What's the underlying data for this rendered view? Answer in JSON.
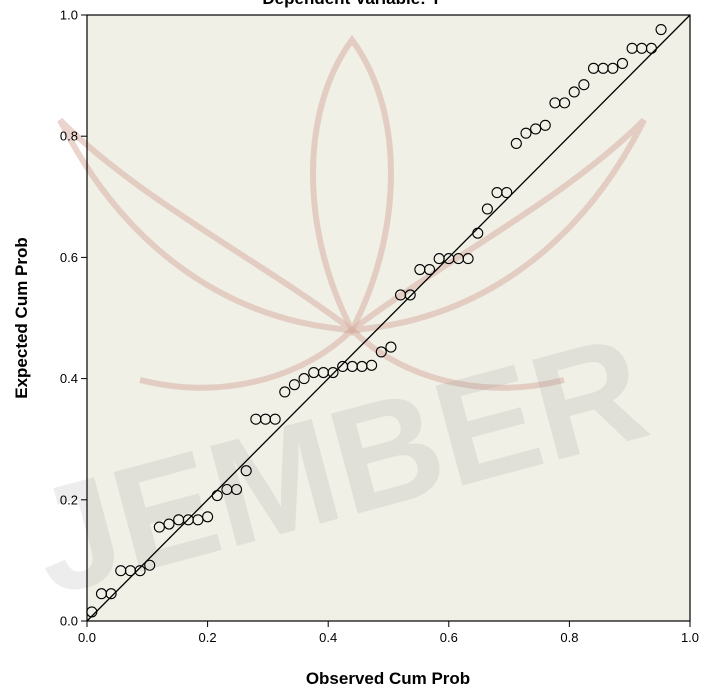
{
  "chart_data": {
    "type": "scatter",
    "title": "Dependent Variable: Y",
    "xlabel": "Observed Cum Prob",
    "ylabel": "Expected Cum Prob",
    "xlim": [
      0,
      1
    ],
    "ylim": [
      0,
      1
    ],
    "x_ticks": [
      "0.0",
      "0.2",
      "0.4",
      "0.6",
      "0.8",
      "1.0"
    ],
    "y_ticks": [
      "0.0",
      "0.2",
      "0.4",
      "0.6",
      "0.8",
      "1.0"
    ],
    "grid": false,
    "reference_line": {
      "from": [
        0,
        0
      ],
      "to": [
        1,
        1
      ]
    },
    "series": [
      {
        "points": [
          [
            0.008,
            0.015
          ],
          [
            0.024,
            0.045
          ],
          [
            0.04,
            0.045
          ],
          [
            0.056,
            0.083
          ],
          [
            0.072,
            0.083
          ],
          [
            0.088,
            0.083
          ],
          [
            0.104,
            0.092
          ],
          [
            0.12,
            0.155
          ],
          [
            0.136,
            0.16
          ],
          [
            0.152,
            0.167
          ],
          [
            0.168,
            0.167
          ],
          [
            0.184,
            0.167
          ],
          [
            0.2,
            0.172
          ],
          [
            0.216,
            0.207
          ],
          [
            0.232,
            0.217
          ],
          [
            0.248,
            0.217
          ],
          [
            0.264,
            0.248
          ],
          [
            0.28,
            0.333
          ],
          [
            0.296,
            0.333
          ],
          [
            0.312,
            0.333
          ],
          [
            0.328,
            0.378
          ],
          [
            0.344,
            0.39
          ],
          [
            0.36,
            0.4
          ],
          [
            0.376,
            0.41
          ],
          [
            0.392,
            0.41
          ],
          [
            0.408,
            0.41
          ],
          [
            0.424,
            0.42
          ],
          [
            0.44,
            0.42
          ],
          [
            0.456,
            0.42
          ],
          [
            0.472,
            0.422
          ],
          [
            0.488,
            0.444
          ],
          [
            0.504,
            0.452
          ],
          [
            0.52,
            0.538
          ],
          [
            0.536,
            0.538
          ],
          [
            0.552,
            0.58
          ],
          [
            0.568,
            0.58
          ],
          [
            0.584,
            0.598
          ],
          [
            0.6,
            0.598
          ],
          [
            0.616,
            0.598
          ],
          [
            0.632,
            0.598
          ],
          [
            0.648,
            0.64
          ],
          [
            0.664,
            0.68
          ],
          [
            0.68,
            0.707
          ],
          [
            0.696,
            0.707
          ],
          [
            0.712,
            0.788
          ],
          [
            0.728,
            0.805
          ],
          [
            0.744,
            0.812
          ],
          [
            0.76,
            0.818
          ],
          [
            0.776,
            0.855
          ],
          [
            0.792,
            0.855
          ],
          [
            0.808,
            0.873
          ],
          [
            0.824,
            0.885
          ],
          [
            0.84,
            0.912
          ],
          [
            0.856,
            0.912
          ],
          [
            0.872,
            0.912
          ],
          [
            0.888,
            0.92
          ],
          [
            0.904,
            0.945
          ],
          [
            0.92,
            0.945
          ],
          [
            0.936,
            0.945
          ],
          [
            0.952,
            0.976
          ]
        ]
      }
    ]
  },
  "watermark": {
    "text": "JEMBER",
    "color": "#8c8c8c"
  },
  "colors": {
    "plot_background": "#f0f0e6",
    "marker": "#000000",
    "line": "#000000"
  }
}
